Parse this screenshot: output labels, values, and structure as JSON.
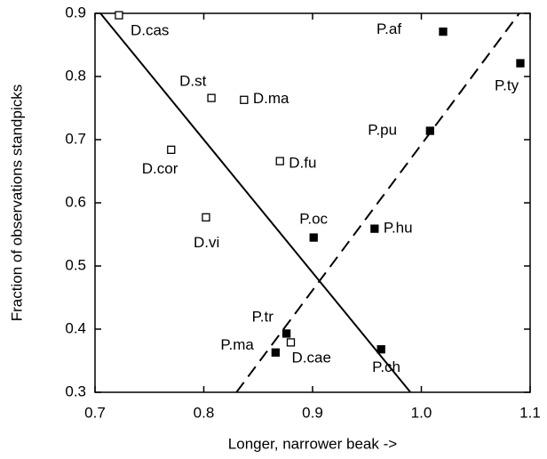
{
  "chart_data": {
    "type": "scatter",
    "x_label": "Longer, narrower beak ->",
    "y_label": "Fraction of observations standpicks",
    "xlim": [
      0.7,
      1.1
    ],
    "xticks": [
      0.7,
      0.8,
      0.9,
      {
        "value": 1.0,
        "label": "1.0"
      },
      1.1
    ],
    "ylim": [
      0.3,
      0.9
    ],
    "yticks": [
      0.3,
      0.4,
      0.5,
      0.6,
      0.7,
      0.8,
      0.9
    ],
    "series": [
      {
        "marker": "open-square",
        "color": "#000000",
        "labels": [
          "D.cas",
          "D.st",
          "D.ma",
          "D.cor",
          "D.fu",
          "D.vi",
          "D.cae"
        ],
        "x": [
          0.722,
          0.807,
          0.837,
          0.77,
          0.87,
          0.802,
          0.88
        ],
        "y": [
          0.897,
          0.766,
          0.763,
          0.684,
          0.666,
          0.577,
          0.379
        ]
      },
      {
        "marker": "filled-square",
        "color": "#000000",
        "labels": [
          "P.af",
          "P.ty",
          "P.pu",
          "P.oc",
          "P.hu",
          "P.tr",
          "P.ma",
          "P.ch"
        ],
        "x": [
          1.02,
          1.091,
          1.008,
          0.901,
          0.957,
          0.876,
          0.866,
          0.963
        ],
        "y": [
          0.871,
          0.821,
          0.714,
          0.545,
          0.559,
          0.393,
          0.363,
          0.368
        ]
      }
    ],
    "lines": [
      {
        "style": "solid",
        "x": [
          0.705,
          0.99
        ],
        "y": [
          0.9,
          0.3
        ]
      },
      {
        "style": "dashed",
        "x": [
          0.83,
          1.09
        ],
        "y": [
          0.3,
          0.9
        ]
      }
    ]
  }
}
